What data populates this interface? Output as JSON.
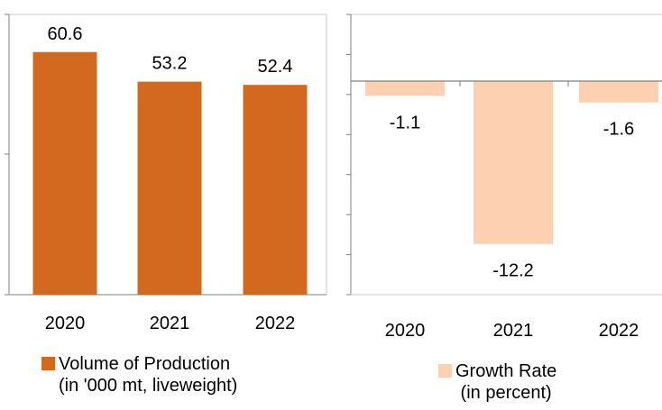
{
  "chart_data": [
    {
      "type": "bar",
      "categories": [
        "2020",
        "2021",
        "2022"
      ],
      "series": [
        {
          "name": "Volume of Production",
          "values": [
            60.6,
            53.2,
            52.4
          ]
        }
      ],
      "data_labels": [
        "60.6",
        "53.2",
        "52.4"
      ],
      "legend": {
        "line1": "Volume of Production",
        "line2": "(in '000 mt, liveweight)",
        "placement": "bottom"
      },
      "ylim": [
        0,
        70
      ],
      "color": "#d2691e",
      "grid": false
    },
    {
      "type": "bar",
      "categories": [
        "2020",
        "2021",
        "2022"
      ],
      "series": [
        {
          "name": "Growth Rate",
          "values": [
            -1.1,
            -12.2,
            -1.6
          ]
        }
      ],
      "data_labels": [
        "-1.1",
        "-12.2",
        "-1.6"
      ],
      "legend": {
        "line1": "Growth Rate",
        "line2": "(in percent)",
        "placement": "bottom"
      },
      "ylim": [
        -16,
        5
      ],
      "color": "#fdd0b1",
      "grid": false
    }
  ]
}
